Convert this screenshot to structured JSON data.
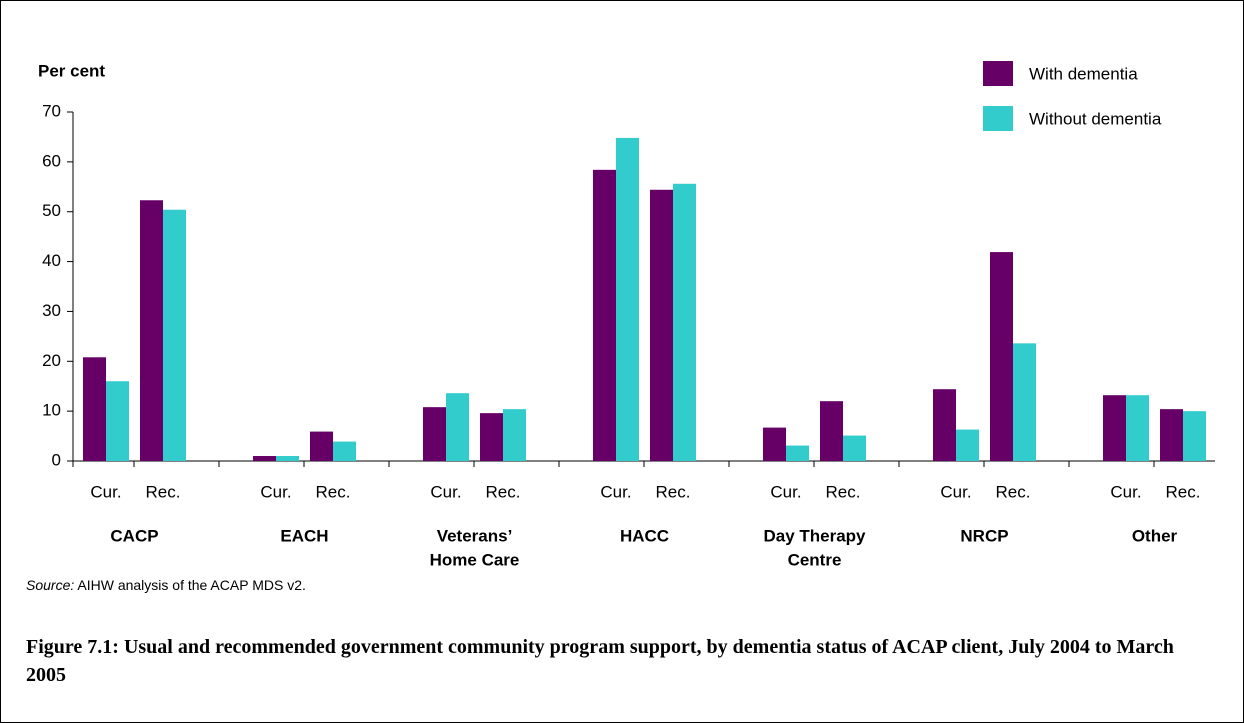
{
  "chart_data": {
    "type": "bar",
    "y_label": "Per cent",
    "categories": [
      "Cur.",
      "Rec.",
      "Cur.",
      "Rec.",
      "Cur.",
      "Rec.",
      "Cur.",
      "Rec.",
      "Cur.",
      "Rec.",
      "Cur.",
      "Rec.",
      "Cur.",
      "Rec."
    ],
    "groups": [
      [
        "CACP"
      ],
      [
        "EACH"
      ],
      [
        "Veterans’",
        "Home Care"
      ],
      [
        "HACC"
      ],
      [
        "Day Therapy",
        "Centre"
      ],
      [
        "NRCP"
      ],
      [
        "Other"
      ]
    ],
    "series": [
      {
        "name": "With dementia",
        "color": "#660066",
        "values": [
          20.8,
          52.3,
          1,
          5.9,
          10.8,
          9.6,
          58.4,
          54.4,
          6.7,
          12,
          14.4,
          41.9,
          13.2,
          10.4
        ]
      },
      {
        "name": "Without dementia",
        "color": "#33cccc",
        "values": [
          16,
          50.4,
          1,
          3.9,
          13.6,
          10.4,
          64.8,
          55.6,
          3.1,
          5.1,
          6.3,
          23.6,
          13.2,
          10
        ]
      }
    ],
    "ylim": [
      0,
      70
    ],
    "yticks": [
      0,
      10,
      20,
      30,
      40,
      50,
      60,
      70
    ],
    "legend": "top-right"
  },
  "source_label": "Source:",
  "source": "AIHW analysis of the ACAP MDS v2.",
  "caption": "Figure 7.1: Usual and recommended government community program support, by dementia status of ACAP client, July 2004 to March 2005"
}
